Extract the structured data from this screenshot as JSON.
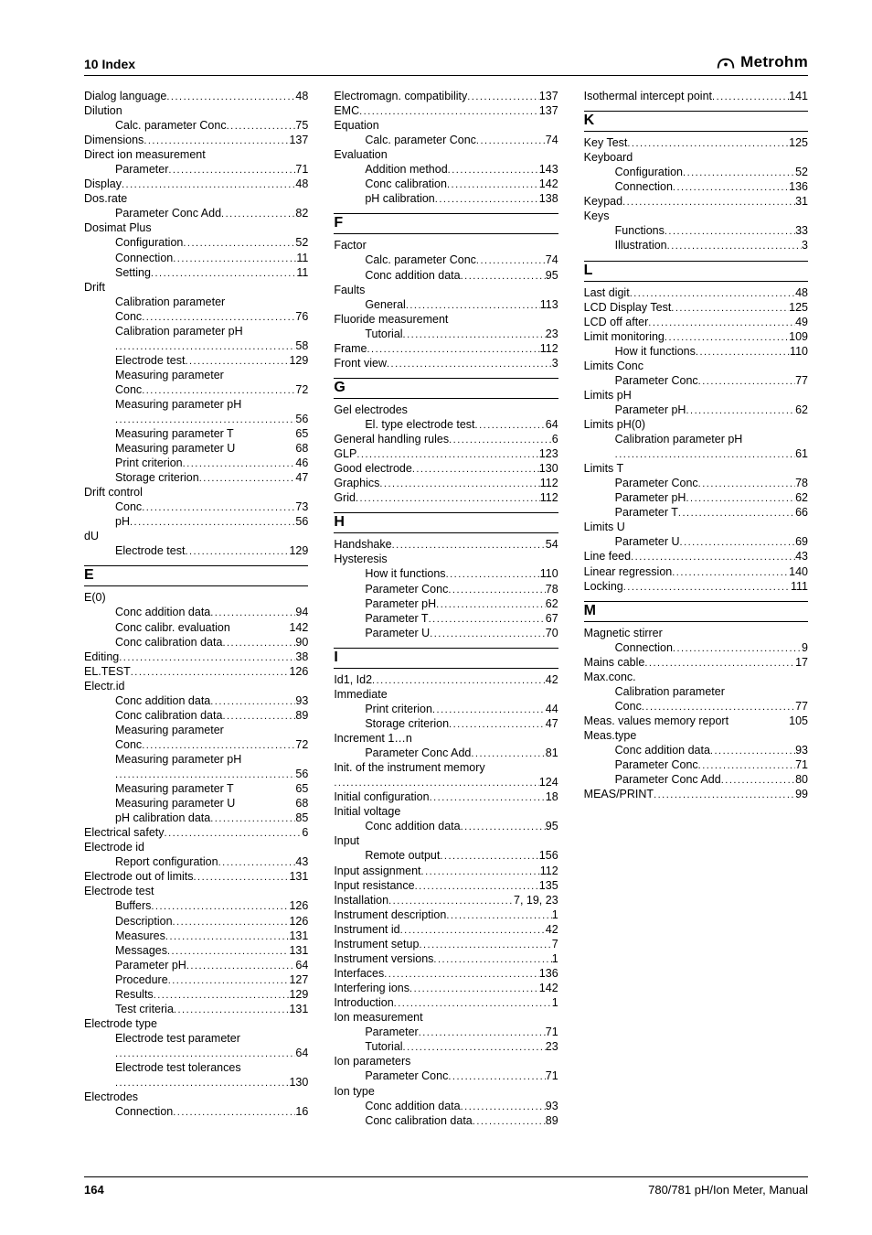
{
  "header": {
    "title": "10 Index",
    "brand": "Metrohm"
  },
  "footer": {
    "page": "164",
    "doc": "780/781 pH/Ion Meter, Manual"
  },
  "items": [
    {
      "t": "entry",
      "label": "Dialog language",
      "page": "48"
    },
    {
      "t": "head",
      "label": "Dilution"
    },
    {
      "t": "entry",
      "indent": true,
      "label": "Calc. parameter Conc",
      "page": "75"
    },
    {
      "t": "entry",
      "label": "Dimensions",
      "page": "137"
    },
    {
      "t": "head",
      "label": "Direct ion measurement"
    },
    {
      "t": "entry",
      "indent": true,
      "label": "Parameter",
      "page": "71"
    },
    {
      "t": "entry",
      "label": "Display",
      "page": "48"
    },
    {
      "t": "head",
      "label": "Dos.rate"
    },
    {
      "t": "entry",
      "indent": true,
      "label": "Parameter Conc Add",
      "page": "82"
    },
    {
      "t": "head",
      "label": "Dosimat Plus"
    },
    {
      "t": "entry",
      "indent": true,
      "label": "Configuration",
      "page": "52"
    },
    {
      "t": "entry",
      "indent": true,
      "label": "Connection",
      "page": "11"
    },
    {
      "t": "entry",
      "indent": true,
      "label": "Setting",
      "page": "11"
    },
    {
      "t": "head",
      "label": "Drift"
    },
    {
      "t": "head",
      "indent": true,
      "label": "Calibration parameter"
    },
    {
      "t": "entry",
      "indent": true,
      "label": "Conc",
      "page": "76"
    },
    {
      "t": "head",
      "indent": true,
      "label": "Calibration parameter pH"
    },
    {
      "t": "entry",
      "indent": true,
      "label": "",
      "page": "58"
    },
    {
      "t": "entry",
      "indent": true,
      "label": "Electrode test",
      "page": "129"
    },
    {
      "t": "head",
      "indent": true,
      "label": "Measuring parameter"
    },
    {
      "t": "entry",
      "indent": true,
      "label": "Conc",
      "page": "72"
    },
    {
      "t": "head",
      "indent": true,
      "label": "Measuring parameter pH"
    },
    {
      "t": "entry",
      "indent": true,
      "label": "",
      "page": "56"
    },
    {
      "t": "entry",
      "indent": true,
      "label": "Measuring parameter T",
      "page": "65",
      "nodots": true
    },
    {
      "t": "entry",
      "indent": true,
      "label": "Measuring parameter U",
      "page": "68",
      "nodots": true
    },
    {
      "t": "entry",
      "indent": true,
      "label": "Print criterion",
      "page": "46"
    },
    {
      "t": "entry",
      "indent": true,
      "label": "Storage criterion",
      "page": "47"
    },
    {
      "t": "head",
      "label": "Drift control"
    },
    {
      "t": "entry",
      "indent": true,
      "label": "Conc",
      "page": "73"
    },
    {
      "t": "entry",
      "indent": true,
      "label": "pH",
      "page": "56"
    },
    {
      "t": "head",
      "label": "dU"
    },
    {
      "t": "entry",
      "indent": true,
      "label": "Electrode test",
      "page": "129"
    },
    {
      "t": "letter",
      "label": "E"
    },
    {
      "t": "head",
      "label": "E(0)"
    },
    {
      "t": "entry",
      "indent": true,
      "label": "Conc addition data",
      "page": "94"
    },
    {
      "t": "entry",
      "indent": true,
      "label": "Conc calibr. evaluation",
      "page": "142",
      "nodots": true
    },
    {
      "t": "entry",
      "indent": true,
      "label": "Conc calibration data",
      "page": "90"
    },
    {
      "t": "entry",
      "label": "Editing",
      "page": "38"
    },
    {
      "t": "entry",
      "label": "EL.TEST",
      "page": "126"
    },
    {
      "t": "head",
      "label": "Electr.id"
    },
    {
      "t": "entry",
      "indent": true,
      "label": "Conc addition data",
      "page": "93"
    },
    {
      "t": "entry",
      "indent": true,
      "label": "Conc calibration data",
      "page": "89"
    },
    {
      "t": "head",
      "indent": true,
      "label": "Measuring parameter"
    },
    {
      "t": "entry",
      "indent": true,
      "label": "Conc",
      "page": "72"
    },
    {
      "t": "head",
      "indent": true,
      "label": "Measuring parameter pH"
    },
    {
      "t": "entry",
      "indent": true,
      "label": "",
      "page": "56"
    },
    {
      "t": "entry",
      "indent": true,
      "label": "Measuring parameter T",
      "page": "65",
      "nodots": true
    },
    {
      "t": "entry",
      "indent": true,
      "label": "Measuring parameter U",
      "page": "68",
      "nodots": true
    },
    {
      "t": "entry",
      "indent": true,
      "label": "pH calibration data",
      "page": "85"
    },
    {
      "t": "entry",
      "label": "Electrical safety",
      "page": "6"
    },
    {
      "t": "head",
      "label": "Electrode id"
    },
    {
      "t": "entry",
      "indent": true,
      "label": "Report configuration",
      "page": "43"
    },
    {
      "t": "entry",
      "label": "Electrode out of limits",
      "page": "131"
    },
    {
      "t": "head",
      "label": "Electrode test"
    },
    {
      "t": "entry",
      "indent": true,
      "label": "Buffers",
      "page": "126"
    },
    {
      "t": "entry",
      "indent": true,
      "label": "Description",
      "page": "126"
    },
    {
      "t": "entry",
      "indent": true,
      "label": "Measures",
      "page": "131"
    },
    {
      "t": "entry",
      "indent": true,
      "label": "Messages",
      "page": "131"
    },
    {
      "t": "entry",
      "indent": true,
      "label": "Parameter pH",
      "page": "64"
    },
    {
      "t": "entry",
      "indent": true,
      "label": "Procedure",
      "page": "127"
    },
    {
      "t": "entry",
      "indent": true,
      "label": "Results",
      "page": "129"
    },
    {
      "t": "entry",
      "indent": true,
      "label": "Test criteria",
      "page": "131"
    },
    {
      "t": "head",
      "label": "Electrode type"
    },
    {
      "t": "head",
      "indent": true,
      "label": "Electrode test parameter"
    },
    {
      "t": "entry",
      "indent": true,
      "label": "",
      "page": "64"
    },
    {
      "t": "head",
      "indent": true,
      "label": "Electrode test tolerances"
    },
    {
      "t": "entry",
      "indent": true,
      "label": "",
      "page": "130"
    },
    {
      "t": "head",
      "label": "Electrodes"
    },
    {
      "t": "entry",
      "indent": true,
      "label": "Connection",
      "page": "16"
    },
    {
      "t": "entry",
      "label": "Electromagn. compatibility",
      "page": "137"
    },
    {
      "t": "entry",
      "label": "EMC",
      "page": "137"
    },
    {
      "t": "head",
      "label": "Equation"
    },
    {
      "t": "entry",
      "indent": true,
      "label": "Calc. parameter Conc",
      "page": "74"
    },
    {
      "t": "head",
      "label": "Evaluation"
    },
    {
      "t": "entry",
      "indent": true,
      "label": "Addition method",
      "page": "143"
    },
    {
      "t": "entry",
      "indent": true,
      "label": "Conc calibration",
      "page": "142"
    },
    {
      "t": "entry",
      "indent": true,
      "label": "pH calibration",
      "page": "138"
    },
    {
      "t": "letter",
      "label": "F"
    },
    {
      "t": "head",
      "label": "Factor"
    },
    {
      "t": "entry",
      "indent": true,
      "label": "Calc. parameter Conc",
      "page": "74"
    },
    {
      "t": "entry",
      "indent": true,
      "label": "Conc addition data",
      "page": "95"
    },
    {
      "t": "head",
      "label": "Faults"
    },
    {
      "t": "entry",
      "indent": true,
      "label": "General",
      "page": "113"
    },
    {
      "t": "head",
      "label": "Fluoride measurement"
    },
    {
      "t": "entry",
      "indent": true,
      "label": "Tutorial",
      "page": "23"
    },
    {
      "t": "entry",
      "label": "Frame",
      "page": "112"
    },
    {
      "t": "entry",
      "label": "Front view",
      "page": "3"
    },
    {
      "t": "letter",
      "label": "G"
    },
    {
      "t": "head",
      "label": "Gel electrodes"
    },
    {
      "t": "entry",
      "indent": true,
      "label": "El. type electrode test",
      "page": "64"
    },
    {
      "t": "entry",
      "label": "General handling rules",
      "page": "6"
    },
    {
      "t": "entry",
      "label": "GLP",
      "page": "123"
    },
    {
      "t": "entry",
      "label": "Good electrode",
      "page": "130"
    },
    {
      "t": "entry",
      "label": "Graphics",
      "page": "112"
    },
    {
      "t": "entry",
      "label": "Grid",
      "page": "112"
    },
    {
      "t": "letter",
      "label": "H"
    },
    {
      "t": "entry",
      "label": "Handshake",
      "page": "54"
    },
    {
      "t": "head",
      "label": "Hysteresis"
    },
    {
      "t": "entry",
      "indent": true,
      "label": "How it functions",
      "page": "110"
    },
    {
      "t": "entry",
      "indent": true,
      "label": "Parameter Conc",
      "page": "78"
    },
    {
      "t": "entry",
      "indent": true,
      "label": "Parameter pH",
      "page": "62"
    },
    {
      "t": "entry",
      "indent": true,
      "label": "Parameter T",
      "page": "67"
    },
    {
      "t": "entry",
      "indent": true,
      "label": "Parameter U",
      "page": "70"
    },
    {
      "t": "letter",
      "label": "I"
    },
    {
      "t": "entry",
      "label": "Id1, Id2",
      "page": "42"
    },
    {
      "t": "head",
      "label": "Immediate"
    },
    {
      "t": "entry",
      "indent": true,
      "label": "Print criterion",
      "page": "44"
    },
    {
      "t": "entry",
      "indent": true,
      "label": "Storage criterion",
      "page": "47"
    },
    {
      "t": "head",
      "label": "Increment 1…n"
    },
    {
      "t": "entry",
      "indent": true,
      "label": "Parameter Conc Add",
      "page": "81"
    },
    {
      "t": "head",
      "label": "Init. of the instrument memory"
    },
    {
      "t": "entry",
      "label": "",
      "page": "124"
    },
    {
      "t": "entry",
      "label": "Initial configuration",
      "page": "18"
    },
    {
      "t": "head",
      "label": "Initial voltage"
    },
    {
      "t": "entry",
      "indent": true,
      "label": "Conc addition data",
      "page": "95"
    },
    {
      "t": "head",
      "label": "Input"
    },
    {
      "t": "entry",
      "indent": true,
      "label": "Remote output",
      "page": "156"
    },
    {
      "t": "entry",
      "label": "Input assignment",
      "page": "112"
    },
    {
      "t": "entry",
      "label": "Input resistance",
      "page": "135"
    },
    {
      "t": "entry",
      "label": "Installation",
      "page": "7, 19, 23"
    },
    {
      "t": "entry",
      "label": "Instrument description",
      "page": "1"
    },
    {
      "t": "entry",
      "label": "Instrument id",
      "page": "42"
    },
    {
      "t": "entry",
      "label": "Instrument setup",
      "page": "7"
    },
    {
      "t": "entry",
      "label": "Instrument versions",
      "page": "1"
    },
    {
      "t": "entry",
      "label": "Interfaces",
      "page": "136"
    },
    {
      "t": "entry",
      "label": "Interfering ions",
      "page": "142"
    },
    {
      "t": "entry",
      "label": "Introduction",
      "page": "1"
    },
    {
      "t": "head",
      "label": "Ion measurement"
    },
    {
      "t": "entry",
      "indent": true,
      "label": "Parameter",
      "page": "71"
    },
    {
      "t": "entry",
      "indent": true,
      "label": "Tutorial",
      "page": "23"
    },
    {
      "t": "head",
      "label": "Ion parameters"
    },
    {
      "t": "entry",
      "indent": true,
      "label": "Parameter Conc",
      "page": "71"
    },
    {
      "t": "head",
      "label": "Ion type"
    },
    {
      "t": "entry",
      "indent": true,
      "label": "Conc addition data",
      "page": "93"
    },
    {
      "t": "entry",
      "indent": true,
      "label": "Conc calibration data",
      "page": "89"
    },
    {
      "t": "entry",
      "label": "Isothermal intercept point",
      "page": "141"
    },
    {
      "t": "letter",
      "label": "K"
    },
    {
      "t": "entry",
      "label": "Key Test",
      "page": "125"
    },
    {
      "t": "head",
      "label": "Keyboard"
    },
    {
      "t": "entry",
      "indent": true,
      "label": "Configuration",
      "page": "52"
    },
    {
      "t": "entry",
      "indent": true,
      "label": "Connection",
      "page": "136"
    },
    {
      "t": "entry",
      "label": "Keypad",
      "page": "31"
    },
    {
      "t": "head",
      "label": "Keys"
    },
    {
      "t": "entry",
      "indent": true,
      "label": "Functions",
      "page": "33"
    },
    {
      "t": "entry",
      "indent": true,
      "label": "Illustration",
      "page": "3"
    },
    {
      "t": "letter",
      "label": "L"
    },
    {
      "t": "entry",
      "label": "Last digit",
      "page": "48"
    },
    {
      "t": "entry",
      "label": "LCD Display Test",
      "page": "125"
    },
    {
      "t": "entry",
      "label": "LCD off after",
      "page": "49"
    },
    {
      "t": "entry",
      "label": "Limit monitoring",
      "page": "109"
    },
    {
      "t": "entry",
      "indent": true,
      "label": "How it functions",
      "page": "110"
    },
    {
      "t": "head",
      "label": "Limits Conc"
    },
    {
      "t": "entry",
      "indent": true,
      "label": "Parameter Conc",
      "page": "77"
    },
    {
      "t": "head",
      "label": "Limits pH"
    },
    {
      "t": "entry",
      "indent": true,
      "label": "Parameter pH",
      "page": "62"
    },
    {
      "t": "head",
      "label": "Limits pH(0)"
    },
    {
      "t": "head",
      "indent": true,
      "label": "Calibration parameter pH"
    },
    {
      "t": "entry",
      "indent": true,
      "label": "",
      "page": "61"
    },
    {
      "t": "head",
      "label": "Limits T"
    },
    {
      "t": "entry",
      "indent": true,
      "label": "Parameter Conc",
      "page": "78"
    },
    {
      "t": "entry",
      "indent": true,
      "label": "Parameter pH",
      "page": "62"
    },
    {
      "t": "entry",
      "indent": true,
      "label": "Parameter T",
      "page": "66"
    },
    {
      "t": "head",
      "label": "Limits U"
    },
    {
      "t": "entry",
      "indent": true,
      "label": "Parameter U",
      "page": "69"
    },
    {
      "t": "entry",
      "label": "Line feed",
      "page": "43"
    },
    {
      "t": "entry",
      "label": "Linear regression",
      "page": "140"
    },
    {
      "t": "entry",
      "label": "Locking",
      "page": "111"
    },
    {
      "t": "letter",
      "label": "M"
    },
    {
      "t": "head",
      "label": "Magnetic stirrer"
    },
    {
      "t": "entry",
      "indent": true,
      "label": "Connection",
      "page": "9"
    },
    {
      "t": "entry",
      "label": "Mains cable",
      "page": "17"
    },
    {
      "t": "head",
      "label": "Max.conc."
    },
    {
      "t": "head",
      "indent": true,
      "label": "Calibration parameter"
    },
    {
      "t": "entry",
      "indent": true,
      "label": "Conc",
      "page": "77"
    },
    {
      "t": "entry",
      "label": "Meas. values memory report",
      "page": "105",
      "nodots": true
    },
    {
      "t": "head",
      "label": "Meas.type"
    },
    {
      "t": "entry",
      "indent": true,
      "label": "Conc addition data",
      "page": "93"
    },
    {
      "t": "entry",
      "indent": true,
      "label": "Parameter Conc",
      "page": "71"
    },
    {
      "t": "entry",
      "indent": true,
      "label": "Parameter Conc Add",
      "page": "80"
    },
    {
      "t": "entry",
      "label": "MEAS/PRINT",
      "page": "99"
    }
  ]
}
